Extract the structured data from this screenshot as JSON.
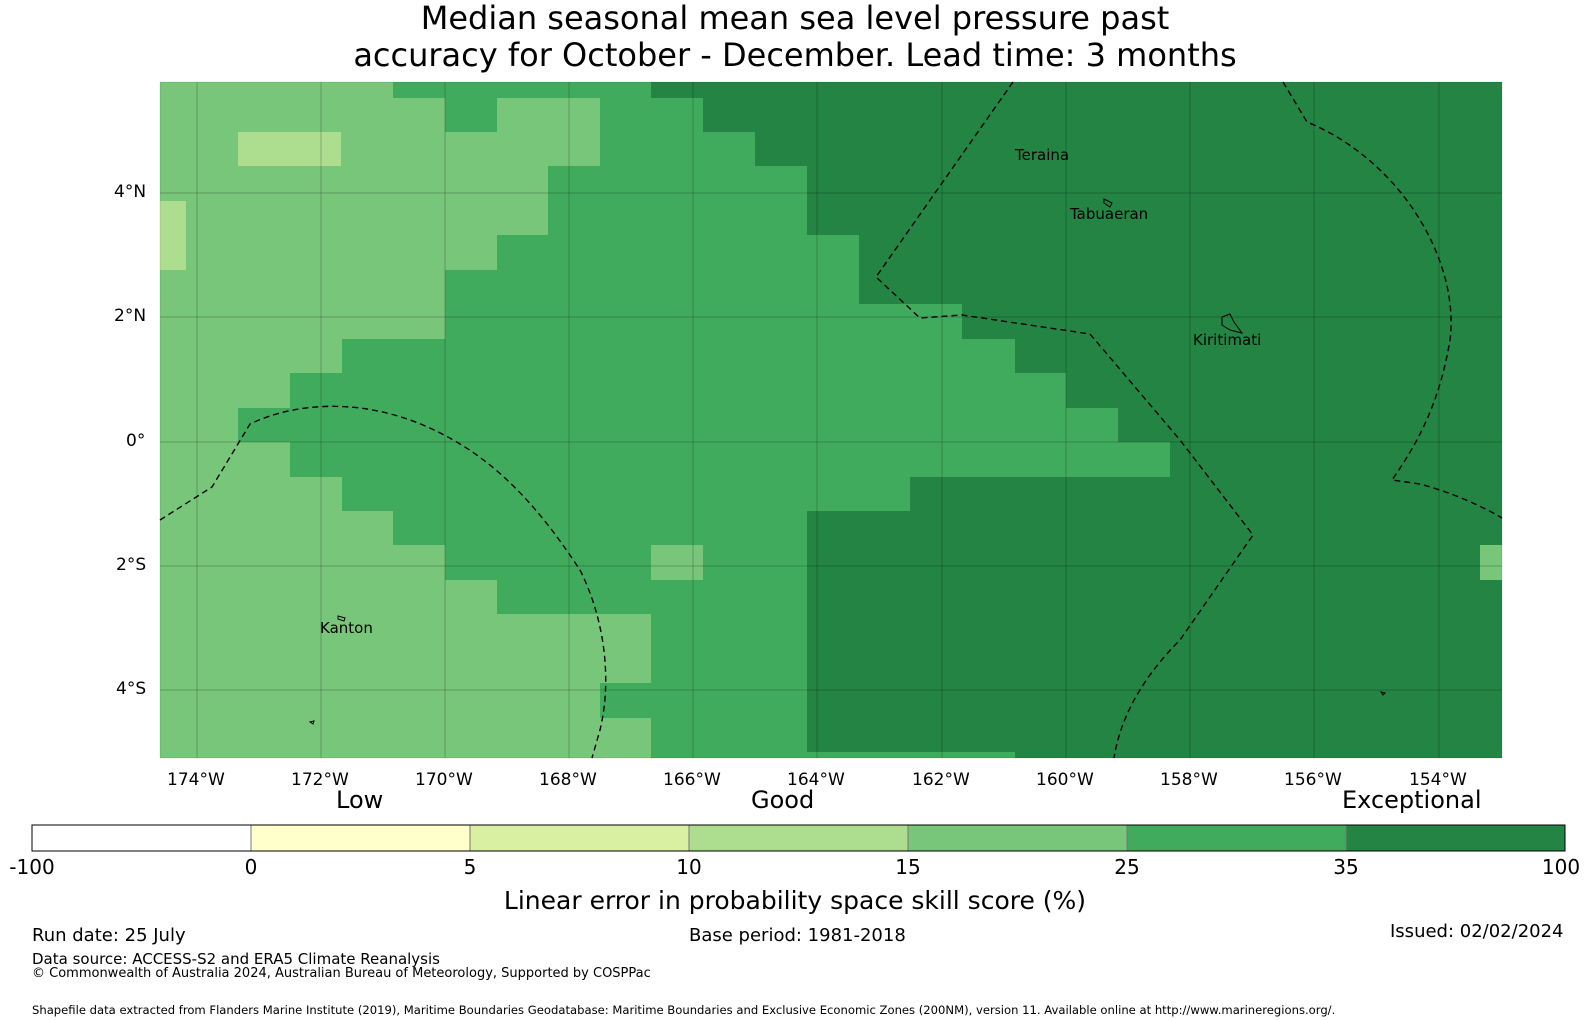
{
  "title_line1": "Median seasonal mean sea level pressure past",
  "title_line2": "accuracy for October - December. Lead time: 3 months",
  "map": {
    "lon_labels": [
      "174°W",
      "172°W",
      "170°W",
      "168°W",
      "166°W",
      "164°W",
      "162°W",
      "160°W",
      "158°W",
      "156°W",
      "154°W"
    ],
    "lat_labels": [
      "4°N",
      "2°N",
      "0°",
      "2°S",
      "4°S"
    ],
    "places": [
      "Teraina",
      "Tabuaeran",
      "Kiritimati",
      "Kanton"
    ],
    "colors": {
      "band_15_25": "#78c679",
      "band_25_35": "#41ab5d",
      "band_35_100": "#238443",
      "band_10_15": "#addd8e"
    }
  },
  "colorbar": {
    "categories": [
      "Low",
      "Good",
      "Exceptional"
    ],
    "ticks": [
      "-100",
      "0",
      "5",
      "10",
      "15",
      "25",
      "35",
      "100"
    ],
    "colors": [
      "#ffffff",
      "#ffffcc",
      "#d9f0a3",
      "#addd8e",
      "#78c679",
      "#41ab5d",
      "#238443"
    ],
    "label": "Linear error in probability space skill score (%)"
  },
  "footer": {
    "run_date": "Run date: 25 July",
    "base_period": "Base period: 1981-2018",
    "issued": "Issued: 02/02/2024",
    "data_source": "Data source: ACCESS-S2 and ERA5 Climate Reanalysis",
    "copyright": "© Commonwealth of Australia 2024, Australian Bureau of Meteorology, Supported by COSPPac",
    "shapefile": "Shapefile data extracted from Flanders Marine Institute (2019), Maritime Boundaries Geodatabase: Maritime Boundaries and Exclusive Economic Zones (200NM), version 11. Available online at http://www.marineregions.org/."
  }
}
